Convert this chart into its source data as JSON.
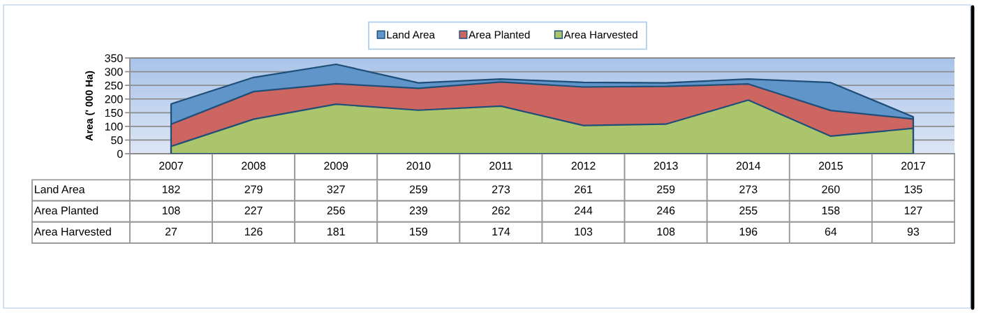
{
  "chart_data": {
    "type": "area",
    "ylabel": "Area (' 000 Ha)",
    "categories": [
      "2007",
      "2008",
      "2009",
      "2010",
      "2011",
      "2012",
      "2013",
      "2014",
      "2015",
      "2017"
    ],
    "series": [
      {
        "name": "Land Area",
        "color": "#5f95c9",
        "values": [
          182,
          279,
          327,
          259,
          273,
          261,
          259,
          273,
          260,
          135
        ]
      },
      {
        "name": "Area Planted",
        "color": "#cd6660",
        "values": [
          108,
          227,
          256,
          239,
          262,
          244,
          246,
          255,
          158,
          127
        ]
      },
      {
        "name": "Area Harvested",
        "color": "#abc56c",
        "values": [
          27,
          126,
          181,
          159,
          174,
          103,
          108,
          196,
          64,
          93
        ]
      }
    ],
    "ylim": [
      0,
      350
    ],
    "yticks": [
      0,
      50,
      100,
      150,
      200,
      250,
      300,
      350
    ],
    "grid": "y",
    "legend": "top",
    "data_labels": true
  }
}
